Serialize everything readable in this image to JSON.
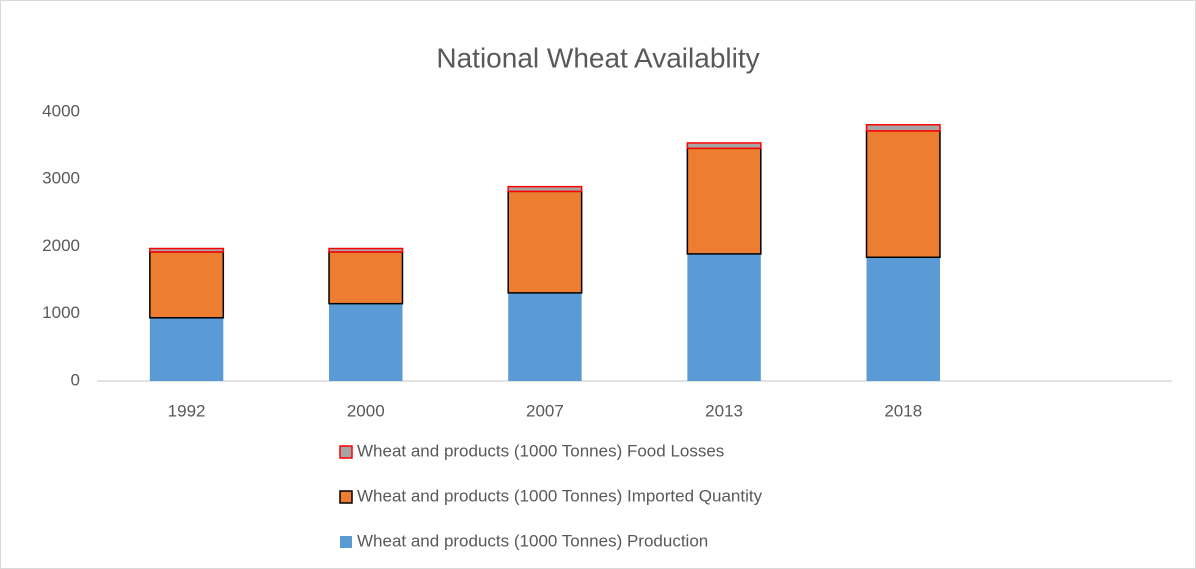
{
  "chart_data": {
    "type": "stacked_bar",
    "title": "National Wheat Availablity",
    "categories": [
      "1992",
      "2000",
      "2007",
      "2013",
      "2018",
      null
    ],
    "series": [
      {
        "name": "Wheat and products (1000 Tonnes) Production",
        "color": "#5b9bd5",
        "values": [
          940,
          1150,
          1310,
          1890,
          1840,
          null
        ]
      },
      {
        "name": "Wheat and products (1000 Tonnes) Imported Quantity",
        "color": "#ed7d31",
        "edgecolor": "#000000",
        "values": [
          980,
          770,
          1510,
          1570,
          1880,
          null
        ]
      },
      {
        "name": "Wheat and products (1000 Tonnes) Food Losses",
        "color": "#a5a5a5",
        "edgecolor": "#ff0000",
        "values": [
          50,
          50,
          70,
          80,
          90,
          null
        ]
      }
    ],
    "ylim": [
      0,
      4000
    ],
    "yticks": [
      0,
      1000,
      2000,
      3000,
      4000
    ],
    "grid": false,
    "legend": "bottom"
  }
}
